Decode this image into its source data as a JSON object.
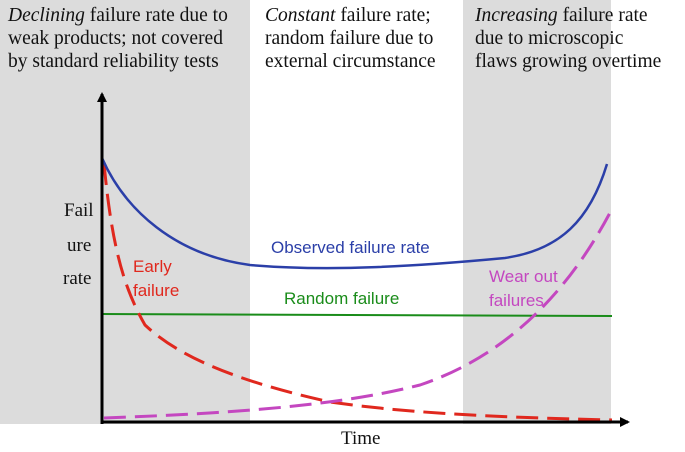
{
  "captions": {
    "left": {
      "emph": "Declining",
      "rest_line1": " failure rate due to",
      "line2": "weak products; not covered",
      "line3": "by standard reliability tests"
    },
    "middle": {
      "emph": "Constant",
      "rest_line1": " failure rate;",
      "line2": "random failure due to",
      "line3": "external circumstance"
    },
    "right": {
      "emph": "Increasing",
      "rest_line1": " failure rate",
      "line2": "due to microscopic",
      "line3": "flaws growing overtime"
    }
  },
  "axes": {
    "y_label_lines": [
      "Fail",
      "ure",
      "rate"
    ],
    "x_label": "Time"
  },
  "curves": {
    "observed": {
      "label": "Observed failure rate",
      "color": "#2b3fa8"
    },
    "random": {
      "label": "Random failure",
      "color": "#1a8c1a"
    },
    "early": {
      "label_lines": [
        "Early",
        "failure"
      ],
      "color": "#e0281e"
    },
    "wearout": {
      "label_lines": [
        "Wear out",
        "failures"
      ],
      "color": "#c447c0"
    }
  },
  "colors": {
    "band": "#dcdcdc",
    "axis": "#000000"
  }
}
